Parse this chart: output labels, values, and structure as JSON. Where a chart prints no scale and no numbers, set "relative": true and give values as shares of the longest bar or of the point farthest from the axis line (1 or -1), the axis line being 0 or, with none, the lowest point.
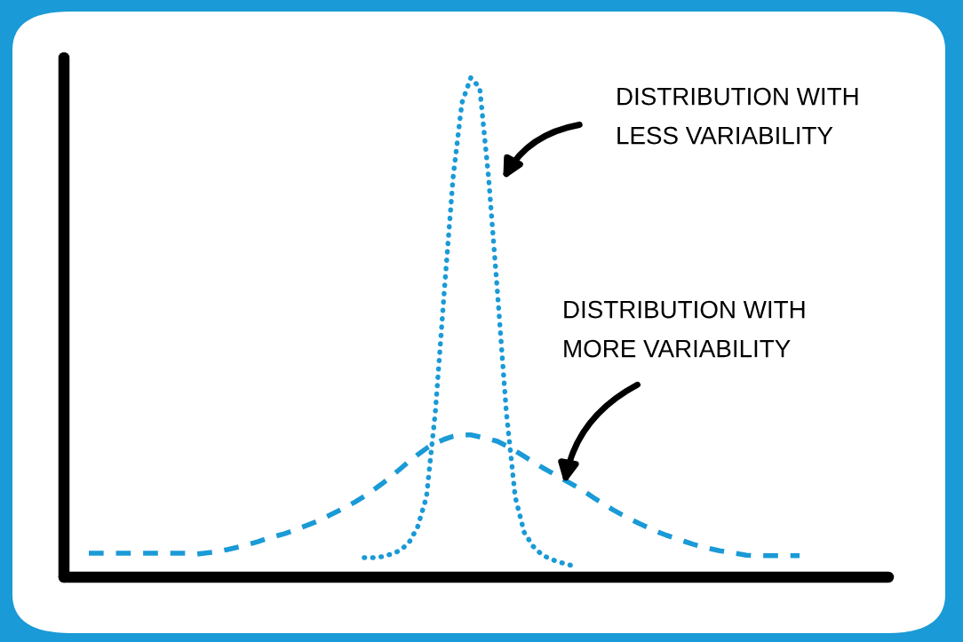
{
  "chart_data": {
    "type": "line",
    "relative": true,
    "categories": [
      null,
      null,
      null,
      null,
      null,
      null,
      null,
      null,
      null,
      null,
      null,
      null,
      null,
      null,
      null,
      null,
      null,
      null,
      null,
      null,
      null,
      null,
      null,
      null,
      null,
      null,
      null,
      null,
      null,
      null,
      null,
      null,
      null,
      null,
      null,
      null,
      null,
      null,
      null,
      null,
      null,
      null,
      null,
      null,
      null,
      null,
      null,
      null,
      null,
      null,
      null,
      null,
      null,
      null,
      null,
      null,
      null,
      null,
      null,
      null,
      null,
      null,
      null,
      null,
      null,
      null,
      null,
      null,
      null,
      null,
      null,
      null,
      null,
      null,
      null,
      null,
      null,
      null,
      null,
      null,
      null,
      null
    ],
    "series": [
      {
        "color": "#1a9ad6",
        "line_style": "dotted",
        "values": [
          null,
          null,
          null,
          null,
          null,
          null,
          null,
          null,
          null,
          null,
          null,
          null,
          null,
          null,
          null,
          null,
          null,
          null,
          null,
          null,
          null,
          null,
          null,
          null,
          null,
          null,
          null,
          null,
          null,
          null,
          null,
          0.039,
          0.039,
          0.041,
          0.046,
          0.053,
          0.068,
          0.1,
          0.16,
          0.33,
          0.57,
          0.8,
          0.95,
          1.0,
          0.98,
          0.8,
          0.57,
          0.33,
          0.16,
          0.09,
          0.062,
          0.045,
          0.036,
          0.03,
          0.025,
          0.02,
          null,
          null,
          null,
          null,
          null,
          null,
          null,
          null,
          null,
          null,
          null,
          null,
          null,
          null,
          null,
          null,
          null,
          null,
          null,
          null,
          null,
          null,
          null,
          null,
          null,
          null
        ]
      },
      {
        "color": "#1a9ad6",
        "line_style": "dashed",
        "values": [
          0.048,
          0.048,
          0.048,
          0.048,
          0.048,
          0.048,
          0.048,
          0.048,
          0.048,
          0.048,
          0.048,
          0.048,
          0.046,
          0.048,
          0.05,
          0.053,
          0.057,
          0.061,
          0.066,
          0.071,
          0.077,
          0.082,
          0.087,
          0.093,
          0.1,
          0.107,
          0.114,
          0.123,
          0.132,
          0.141,
          0.151,
          0.162,
          0.174,
          0.187,
          0.201,
          0.216,
          0.231,
          0.245,
          0.258,
          0.268,
          0.276,
          0.282,
          0.285,
          0.285,
          0.281,
          0.277,
          0.272,
          0.263,
          0.253,
          0.242,
          0.231,
          0.22,
          0.21,
          0.2,
          0.19,
          0.18,
          0.169,
          0.157,
          0.146,
          0.135,
          0.125,
          0.116,
          0.107,
          0.099,
          0.091,
          0.084,
          0.078,
          0.072,
          0.066,
          0.061,
          0.057,
          0.053,
          0.05,
          0.047,
          0.044,
          0.043,
          0.043,
          0.043,
          0.043,
          0.043,
          0.043,
          null
        ]
      }
    ],
    "annotations": [
      "DISTRIBUTION WITH\nLESS VARIABILITY",
      "DISTRIBUTION WITH\nMORE VARIABILITY"
    ]
  }
}
